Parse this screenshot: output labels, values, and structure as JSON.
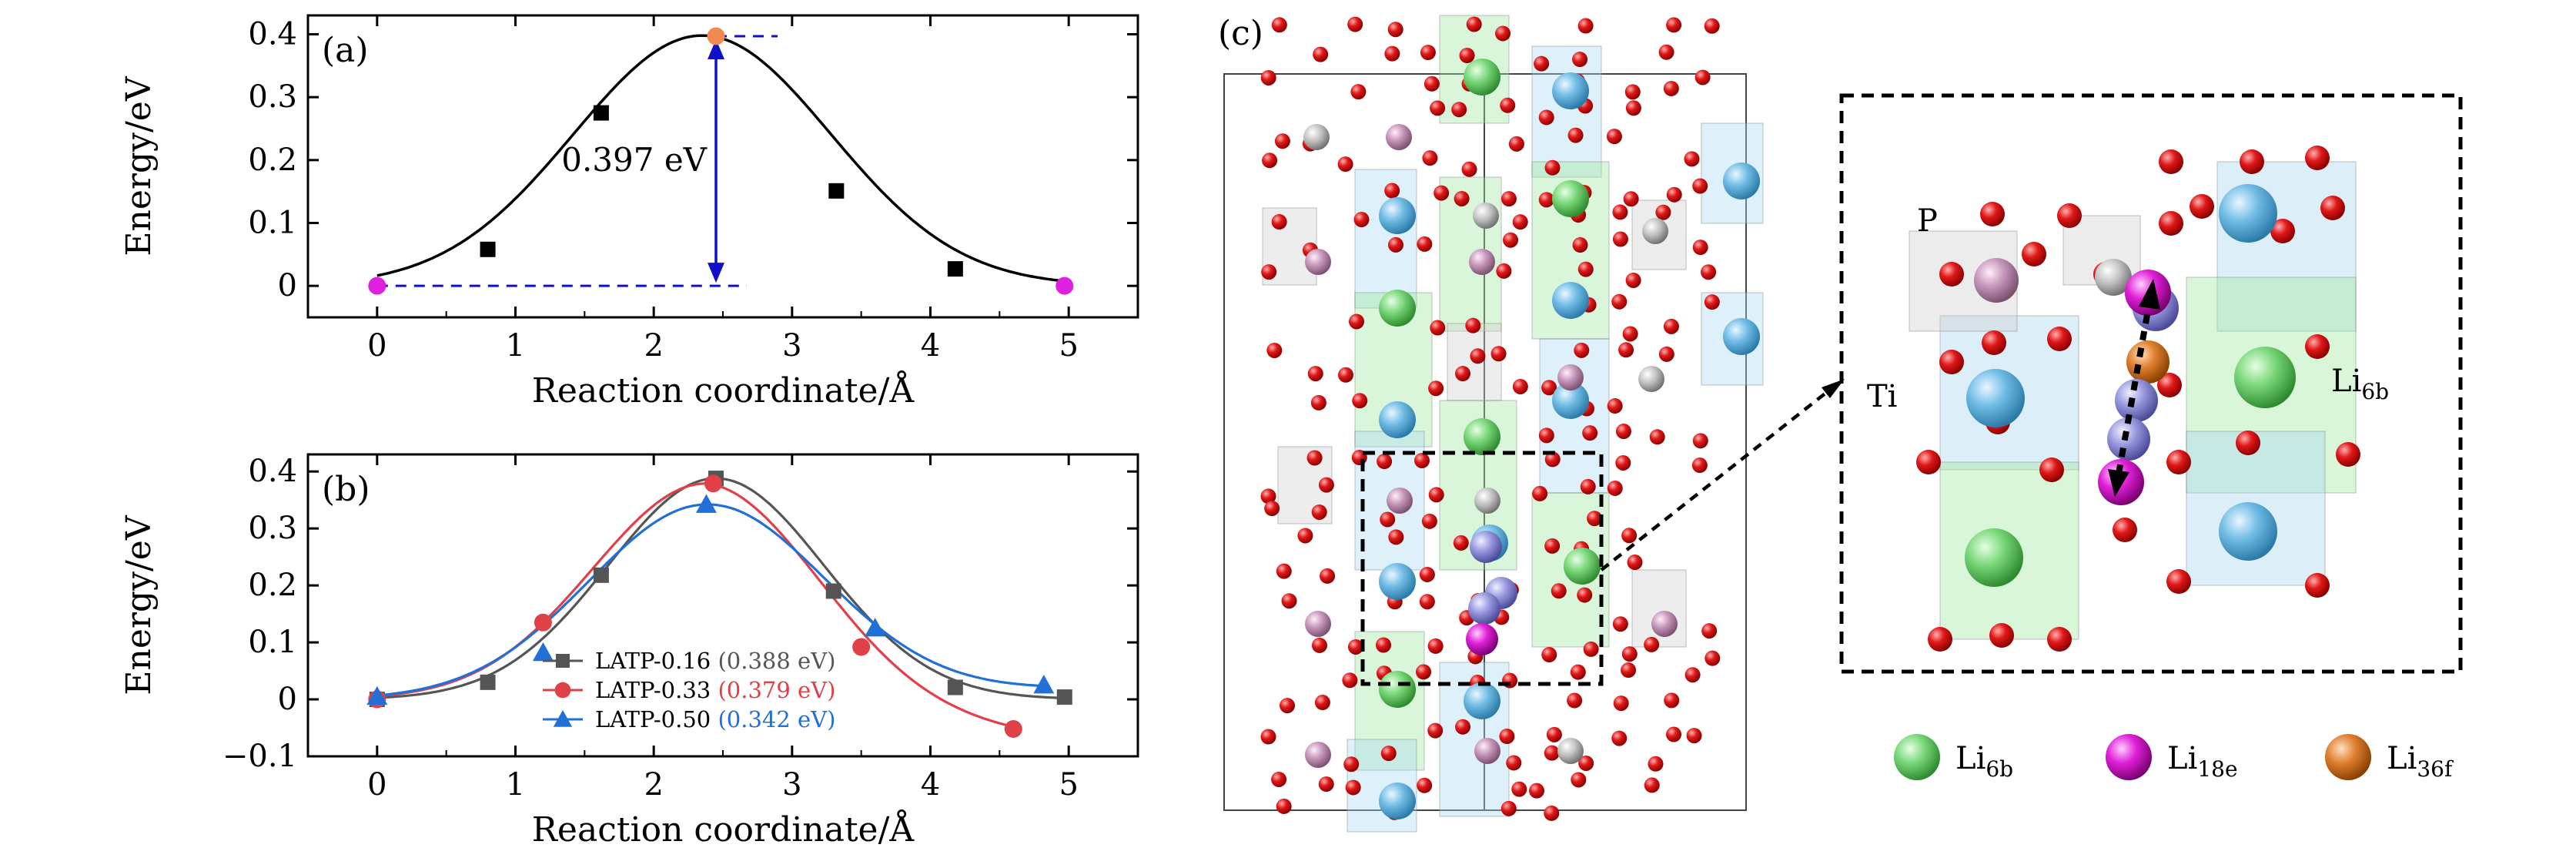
{
  "figure": {
    "panel_c_label": "(c)",
    "structure_labels": {
      "p": "P",
      "ti": "Ti",
      "li6b": "Li",
      "li6b_sub": "6b"
    },
    "atom_legend": [
      {
        "base": "Li",
        "sub": "6b",
        "color": "#6ad06a",
        "icon": "green-sphere"
      },
      {
        "base": "Li",
        "sub": "18e",
        "color": "#e020d8",
        "icon": "magenta-sphere"
      },
      {
        "base": "Li",
        "sub": "36f",
        "color": "#e08030",
        "icon": "orange-sphere"
      }
    ]
  },
  "chart_data": [
    {
      "type": "line",
      "panel_label": "(a)",
      "xlabel": "Reaction coordinate/Å",
      "ylabel": "Energy/eV",
      "xlim": [
        -0.5,
        5.5
      ],
      "ylim": [
        -0.05,
        0.43
      ],
      "xticks": [
        0,
        1,
        2,
        3,
        4,
        5
      ],
      "yticks": [
        0,
        0.1,
        0.2,
        0.3,
        0.4
      ],
      "ytick_labels": [
        "0",
        "0.1",
        "0.2",
        "0.3",
        "0.4"
      ],
      "grid": false,
      "series": [
        {
          "color": "#000000",
          "curve": {
            "amplitude": 0.398,
            "center": 2.35,
            "sigma": 0.93
          },
          "points": [
            {
              "x": 0,
              "y": 0,
              "marker": "circle",
              "color": "#e020e0"
            },
            {
              "x": 0.8,
              "y": 0.058,
              "marker": "square",
              "color": "#000000"
            },
            {
              "x": 1.62,
              "y": 0.275,
              "marker": "square",
              "color": "#000000"
            },
            {
              "x": 2.45,
              "y": 0.397,
              "marker": "circle",
              "color": "#f08a50"
            },
            {
              "x": 3.32,
              "y": 0.151,
              "marker": "square",
              "color": "#000000"
            },
            {
              "x": 4.18,
              "y": 0.027,
              "marker": "square",
              "color": "#000000"
            },
            {
              "x": 4.97,
              "y": 0,
              "marker": "circle",
              "color": "#e020e0"
            }
          ]
        }
      ],
      "annotation": {
        "text": "0.397 eV",
        "x": 2.45,
        "y_low": 0,
        "y_high": 0.397,
        "color": "#1010c8"
      }
    },
    {
      "type": "line",
      "panel_label": "(b)",
      "xlabel": "Reaction coordinate/Å",
      "ylabel": "Energy/eV",
      "xlim": [
        -0.5,
        5.5
      ],
      "ylim": [
        -0.1,
        0.43
      ],
      "xticks": [
        0,
        1,
        2,
        3,
        4,
        5
      ],
      "yticks": [
        -0.1,
        0,
        0.1,
        0.2,
        0.3,
        0.4
      ],
      "ytick_labels": [
        "−0.1",
        "0",
        "0.1",
        "0.2",
        "0.3",
        "0.4"
      ],
      "grid": false,
      "legend_position": "bottom-center",
      "series": [
        {
          "name": "LATP-0.16",
          "barrier": "(0.388 eV)",
          "color": "#555555",
          "marker": "square",
          "curve": {
            "amplitude": 0.388,
            "center": 2.45,
            "sigma": 0.78,
            "baseline": 0,
            "tail": 0
          },
          "points": [
            {
              "x": 0,
              "y": 0
            },
            {
              "x": 0.8,
              "y": 0.03
            },
            {
              "x": 1.62,
              "y": 0.218
            },
            {
              "x": 2.45,
              "y": 0.388
            },
            {
              "x": 3.3,
              "y": 0.19
            },
            {
              "x": 4.18,
              "y": 0.021
            },
            {
              "x": 4.97,
              "y": 0.004
            }
          ]
        },
        {
          "name": "LATP-0.33",
          "barrier": "(0.379 eV)",
          "color": "#e04048",
          "marker": "circle",
          "curve": {
            "amplitude": 0.379,
            "center": 2.38,
            "sigma": 0.82,
            "baseline": 0,
            "tail": -0.058
          },
          "points": [
            {
              "x": 0,
              "y": 0
            },
            {
              "x": 1.2,
              "y": 0.135
            },
            {
              "x": 2.43,
              "y": 0.379
            },
            {
              "x": 3.5,
              "y": 0.092
            },
            {
              "x": 4.6,
              "y": -0.052
            }
          ]
        },
        {
          "name": "LATP-0.50",
          "barrier": "(0.342 eV)",
          "color": "#2070d8",
          "marker": "triangle",
          "curve": {
            "amplitude": 0.342,
            "center": 2.38,
            "sigma": 0.85,
            "baseline": 0,
            "tail": 0.018
          },
          "points": [
            {
              "x": 0,
              "y": 0.005
            },
            {
              "x": 1.2,
              "y": 0.082
            },
            {
              "x": 2.38,
              "y": 0.342
            },
            {
              "x": 3.6,
              "y": 0.125
            },
            {
              "x": 4.82,
              "y": 0.025
            }
          ]
        }
      ]
    }
  ]
}
